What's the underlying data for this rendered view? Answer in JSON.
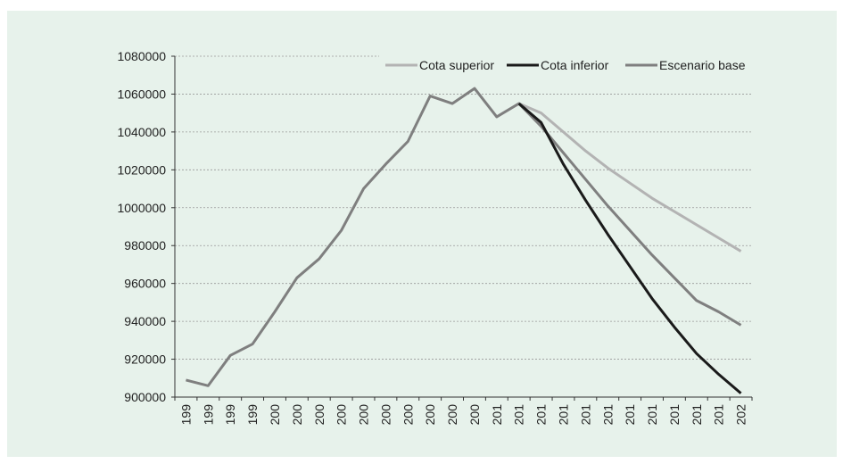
{
  "chart_data": {
    "type": "line",
    "categories": [
      "199",
      "199",
      "199",
      "199",
      "200",
      "200",
      "200",
      "200",
      "200",
      "200",
      "200",
      "200",
      "200",
      "200",
      "201",
      "201",
      "201",
      "201",
      "201",
      "201",
      "201",
      "201",
      "201",
      "201",
      "201",
      "202"
    ],
    "series": [
      {
        "name": "Cota superior",
        "color": "#b3b3b3",
        "values": [
          null,
          null,
          null,
          null,
          null,
          null,
          null,
          null,
          null,
          null,
          null,
          null,
          null,
          null,
          null,
          1055000,
          1050000,
          1040000,
          1030000,
          1021000,
          1013000,
          1005000,
          998000,
          991000,
          984000,
          977000
        ]
      },
      {
        "name": "Cota inferior",
        "color": "#1a1a1a",
        "values": [
          null,
          null,
          null,
          null,
          null,
          null,
          null,
          null,
          null,
          null,
          null,
          null,
          null,
          null,
          null,
          1055000,
          1045000,
          1023000,
          1004000,
          986000,
          969000,
          952000,
          937000,
          923000,
          912000,
          902000
        ]
      },
      {
        "name": "Escenario base",
        "color": "#7f7f7f",
        "values": [
          909000,
          906000,
          922000,
          928000,
          945000,
          963000,
          973000,
          988000,
          1010000,
          1023000,
          1035000,
          1059000,
          1055000,
          1063000,
          1048000,
          1055000,
          1043000,
          1029000,
          1015000,
          1001000,
          988000,
          975000,
          963000,
          951000,
          945000,
          938000
        ]
      }
    ],
    "ylim": [
      900000,
      1080000
    ],
    "yticks": [
      900000,
      920000,
      940000,
      960000,
      980000,
      1000000,
      1020000,
      1040000,
      1060000,
      1080000
    ],
    "grid": true,
    "legend": "top-right"
  }
}
